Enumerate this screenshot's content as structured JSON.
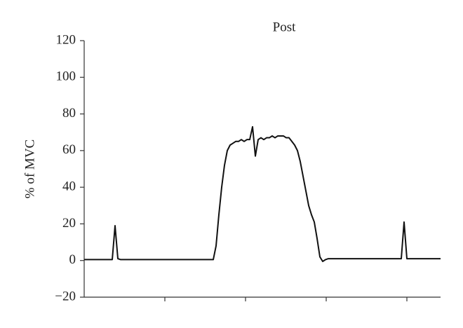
{
  "chart_data": {
    "type": "line",
    "title": "Post",
    "y_label": "% of MVC",
    "color": "#111111",
    "ylim": [
      -20,
      120
    ],
    "yticks": [
      {
        "value": -20,
        "label": "−20"
      },
      0,
      20,
      40,
      60,
      80,
      100,
      120
    ],
    "categories": [
      null,
      null,
      null,
      null,
      null,
      null,
      null,
      null,
      null,
      null,
      null,
      null,
      null,
      null,
      null,
      null,
      null,
      null,
      null,
      null,
      null,
      null,
      null,
      null,
      null,
      null,
      null,
      null,
      null,
      null,
      null,
      null,
      null,
      null,
      null,
      null,
      null,
      null,
      null,
      null,
      null,
      null,
      null,
      null,
      null,
      null,
      null,
      null,
      null,
      null,
      null,
      null,
      null,
      null,
      null,
      null,
      null,
      null,
      null,
      null,
      null,
      null,
      null,
      null,
      null,
      null,
      null,
      null,
      null,
      null,
      null,
      null,
      null,
      null,
      null,
      null,
      null,
      null,
      null,
      null,
      null,
      null,
      null,
      null,
      null,
      null,
      null,
      null,
      null,
      null,
      null,
      null,
      null,
      null,
      null,
      null,
      null,
      null,
      null,
      null,
      null,
      null,
      null,
      null,
      null,
      null,
      null,
      null,
      null,
      null,
      null,
      null,
      null,
      null,
      null,
      null,
      null,
      null,
      null,
      null,
      null,
      null,
      null,
      null,
      null,
      null,
      null,
      null
    ],
    "values": [
      0.5,
      0.5,
      0.5,
      0.5,
      0.5,
      0.5,
      0.5,
      0.5,
      0.5,
      0.5,
      0.5,
      19,
      1,
      0.5,
      0.5,
      0.5,
      0.5,
      0.5,
      0.5,
      0.5,
      0.5,
      0.5,
      0.5,
      0.5,
      0.5,
      0.5,
      0.5,
      0.5,
      0.5,
      0.5,
      0.5,
      0.5,
      0.5,
      0.5,
      0.5,
      0.5,
      0.5,
      0.5,
      0.5,
      0.5,
      0.5,
      0.5,
      0.5,
      0.5,
      0.5,
      0.5,
      0.5,
      8,
      25,
      40,
      52,
      60,
      63,
      64,
      65,
      65,
      66,
      65,
      66,
      66,
      73,
      57,
      66,
      67,
      66,
      67,
      67,
      68,
      67,
      68,
      68,
      68,
      67,
      67,
      65,
      63,
      60,
      54,
      46,
      38,
      30,
      25,
      21,
      12,
      2,
      -0.5,
      0.5,
      1,
      1,
      1,
      1,
      1,
      1,
      1,
      1,
      1,
      1,
      1,
      1,
      1,
      1,
      1,
      1,
      1,
      1,
      1,
      1,
      1,
      1,
      1,
      1,
      1,
      1,
      1,
      21,
      1,
      1,
      1,
      1,
      1,
      1,
      1,
      1,
      1,
      1,
      1,
      1,
      1
    ]
  }
}
